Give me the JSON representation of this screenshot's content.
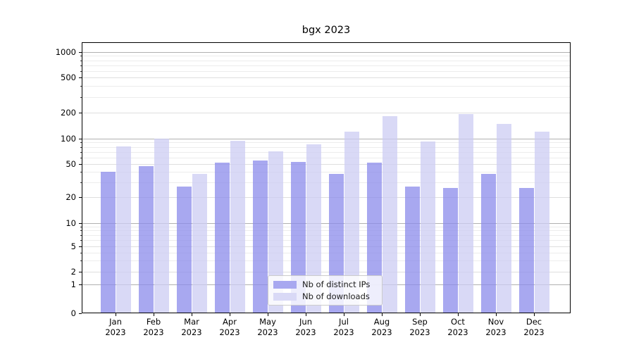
{
  "chart_data": {
    "type": "bar",
    "title": "bgx 2023",
    "categories": [
      "Jan",
      "Feb",
      "Mar",
      "Apr",
      "May",
      "Jun",
      "Jul",
      "Aug",
      "Sep",
      "Oct",
      "Nov",
      "Dec"
    ],
    "category_year": "2023",
    "series": [
      {
        "name": "Nb of distinct IPs",
        "color": "#a8a8f0",
        "fill": "rgba(139,139,235,0.75)",
        "values": [
          40,
          47,
          27,
          52,
          55,
          53,
          38,
          52,
          27,
          26,
          38,
          26
        ]
      },
      {
        "name": "Nb of downloads",
        "color": "#d9d9f6",
        "fill": "rgba(204,204,243,0.75)",
        "values": [
          81,
          100,
          38,
          95,
          71,
          85,
          121,
          182,
          93,
          190,
          148,
          121
        ]
      }
    ],
    "yscale": "symlog",
    "yticks": [
      0,
      1,
      2,
      5,
      10,
      20,
      50,
      100,
      200,
      500,
      1000
    ],
    "y_major_ticks": [
      1,
      10,
      100,
      1000
    ],
    "y_minor_ticks": [
      3,
      4,
      6,
      7,
      8,
      9,
      30,
      40,
      60,
      70,
      80,
      90,
      300,
      400,
      600,
      700,
      800,
      900
    ],
    "ylim": [
      0,
      1300
    ],
    "grid": true,
    "legend_position": "lower-center",
    "axis_color": "#000000",
    "grid_major_color": "#b0b0b0",
    "grid_minor_color": "#ececec"
  }
}
